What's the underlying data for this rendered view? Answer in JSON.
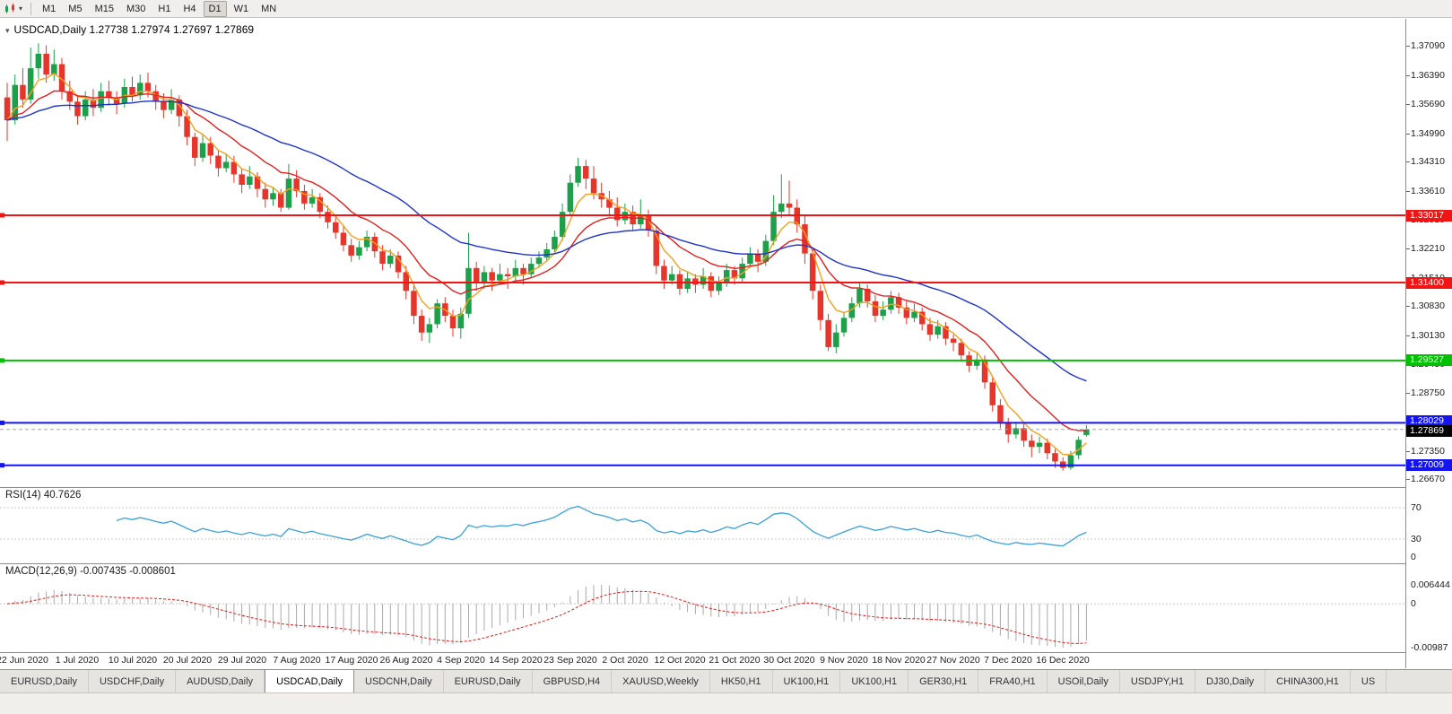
{
  "toolbar": {
    "timeframes": [
      "M1",
      "M5",
      "M15",
      "M30",
      "H1",
      "H4",
      "D1",
      "W1",
      "MN"
    ],
    "active_timeframe": "D1"
  },
  "chart": {
    "title_line": "USDCAD,Daily 1.27738 1.27974 1.27697 1.27869"
  },
  "indicators": {
    "rsi_label": "RSI(14) 40.7626",
    "macd_label": "MACD(12,26,9) -0.007435 -0.008601"
  },
  "tabs": {
    "items": [
      "EURUSD,Daily",
      "USDCHF,Daily",
      "AUDUSD,Daily",
      "USDCAD,Daily",
      "USDCNH,Daily",
      "EURUSD,Daily",
      "GBPUSD,H4",
      "XAUUSD,Weekly",
      "HK50,H1",
      "UK100,H1",
      "UK100,H1",
      "GER30,H1",
      "FRA40,H1",
      "USOil,Daily",
      "USDJPY,H1",
      "DJ30,Daily",
      "CHINA300,H1",
      "US"
    ],
    "active_index": 3
  },
  "colors": {
    "bull": "#1CA049",
    "bear": "#E6352B",
    "ma_fast": "#F5A01E",
    "ma_mid": "#E02020",
    "ma_slow": "#2033C8",
    "line_red": "#F01414",
    "line_green": "#00C100",
    "line_blue": "#1414F0",
    "rsi": "#3AA0DC",
    "macd_hist": "#AAAAAA",
    "macd_signal": "#F01414",
    "current_price": "#000000"
  },
  "chart_data": {
    "type": "candlestick",
    "symbol": "USDCAD",
    "timeframe": "Daily",
    "ohlc_display": {
      "open": "1.27738",
      "high": "1.27974",
      "low": "1.27697",
      "close": "1.27869"
    },
    "y_ticks": [
      "1.37090",
      "1.36390",
      "1.35690",
      "1.34990",
      "1.34310",
      "1.33610",
      "1.32910",
      "1.32210",
      "1.31510",
      "1.30830",
      "1.30130",
      "1.29430",
      "1.28750",
      "1.28050",
      "1.27350",
      "1.26670"
    ],
    "x_labels": [
      "22 Jun 2020",
      "1 Jul 2020",
      "10 Jul 2020",
      "20 Jul 2020",
      "29 Jul 2020",
      "7 Aug 2020",
      "17 Aug 2020",
      "26 Aug 2020",
      "4 Sep 2020",
      "14 Sep 2020",
      "23 Sep 2020",
      "2 Oct 2020",
      "12 Oct 2020",
      "21 Oct 2020",
      "30 Oct 2020",
      "9 Nov 2020",
      "18 Nov 2020",
      "27 Nov 2020",
      "7 Dec 2020",
      "16 Dec 2020"
    ],
    "horizontal_lines": [
      {
        "value": 1.33017,
        "label": "1.33017",
        "color_key": "line_red"
      },
      {
        "value": 1.314,
        "label": "1.31400",
        "color_key": "line_red"
      },
      {
        "value": 1.29527,
        "label": "1.29527",
        "color_key": "line_green"
      },
      {
        "value": 1.28029,
        "label": "1.28029",
        "color_key": "line_blue"
      },
      {
        "value": 1.27009,
        "label": "1.27009",
        "color_key": "line_blue"
      }
    ],
    "current_price": {
      "value": 1.27869,
      "label": "1.27869"
    },
    "moving_averages": [
      {
        "period": 5,
        "color_key": "ma_fast"
      },
      {
        "period": 13,
        "color_key": "ma_mid"
      },
      {
        "period": 34,
        "color_key": "ma_slow"
      }
    ],
    "rsi": {
      "period": 14,
      "current": 40.7626,
      "levels": [
        70,
        30
      ],
      "scale_labels": [
        "70",
        "30",
        "0"
      ]
    },
    "macd": {
      "fast": 12,
      "slow": 26,
      "signal": 9,
      "main": -0.007435,
      "signal_value": -0.008601,
      "scale_labels": [
        "0.006444",
        "0",
        "-0.00987"
      ]
    },
    "candles": [
      [
        1.3585,
        1.362,
        1.348,
        1.353
      ],
      [
        1.353,
        1.364,
        1.352,
        1.3615
      ],
      [
        1.3615,
        1.3655,
        1.356,
        1.358
      ],
      [
        1.358,
        1.3705,
        1.357,
        1.3655
      ],
      [
        1.3655,
        1.3715,
        1.363,
        1.369
      ],
      [
        1.369,
        1.371,
        1.362,
        1.364
      ],
      [
        1.364,
        1.37,
        1.3625,
        1.3665
      ],
      [
        1.3665,
        1.368,
        1.358,
        1.36
      ],
      [
        1.36,
        1.3625,
        1.3555,
        1.3575
      ],
      [
        1.3575,
        1.359,
        1.352,
        1.354
      ],
      [
        1.354,
        1.36,
        1.353,
        1.358
      ],
      [
        1.358,
        1.3605,
        1.354,
        1.356
      ],
      [
        1.356,
        1.362,
        1.355,
        1.36
      ],
      [
        1.36,
        1.3625,
        1.3565,
        1.3585
      ],
      [
        1.3585,
        1.36,
        1.3545,
        1.357
      ],
      [
        1.357,
        1.363,
        1.356,
        1.361
      ],
      [
        1.361,
        1.3635,
        1.3575,
        1.359
      ],
      [
        1.359,
        1.364,
        1.358,
        1.362
      ],
      [
        1.362,
        1.3645,
        1.3585,
        1.36
      ],
      [
        1.36,
        1.3615,
        1.3555,
        1.3575
      ],
      [
        1.3575,
        1.3595,
        1.3535,
        1.3555
      ],
      [
        1.3555,
        1.3605,
        1.3545,
        1.358
      ],
      [
        1.358,
        1.359,
        1.3515,
        1.354
      ],
      [
        1.354,
        1.3555,
        1.347,
        1.349
      ],
      [
        1.349,
        1.35,
        1.342,
        1.344
      ],
      [
        1.344,
        1.3495,
        1.343,
        1.3475
      ],
      [
        1.3475,
        1.349,
        1.3425,
        1.3445
      ],
      [
        1.3445,
        1.346,
        1.3395,
        1.3415
      ],
      [
        1.3415,
        1.345,
        1.3405,
        1.343
      ],
      [
        1.343,
        1.3445,
        1.338,
        1.34
      ],
      [
        1.34,
        1.3415,
        1.3355,
        1.3375
      ],
      [
        1.3375,
        1.342,
        1.3365,
        1.3395
      ],
      [
        1.3395,
        1.3405,
        1.3345,
        1.3365
      ],
      [
        1.3365,
        1.338,
        1.332,
        1.334
      ],
      [
        1.334,
        1.337,
        1.3325,
        1.3355
      ],
      [
        1.3355,
        1.3365,
        1.331,
        1.332
      ],
      [
        1.332,
        1.3425,
        1.3315,
        1.339
      ],
      [
        1.339,
        1.341,
        1.3345,
        1.336
      ],
      [
        1.336,
        1.3375,
        1.3315,
        1.333
      ],
      [
        1.333,
        1.3365,
        1.332,
        1.3345
      ],
      [
        1.3345,
        1.3355,
        1.3295,
        1.331
      ],
      [
        1.331,
        1.3325,
        1.327,
        1.3285
      ],
      [
        1.3285,
        1.33,
        1.3245,
        1.326
      ],
      [
        1.326,
        1.3275,
        1.3215,
        1.323
      ],
      [
        1.323,
        1.3245,
        1.319,
        1.3205
      ],
      [
        1.3205,
        1.324,
        1.3195,
        1.3225
      ],
      [
        1.3225,
        1.3265,
        1.3215,
        1.325
      ],
      [
        1.325,
        1.326,
        1.32,
        1.3215
      ],
      [
        1.3215,
        1.323,
        1.317,
        1.3185
      ],
      [
        1.3185,
        1.322,
        1.3175,
        1.3205
      ],
      [
        1.3205,
        1.3215,
        1.315,
        1.3165
      ],
      [
        1.3165,
        1.318,
        1.31,
        1.312
      ],
      [
        1.312,
        1.3135,
        1.304,
        1.306
      ],
      [
        1.306,
        1.3075,
        1.3,
        1.302
      ],
      [
        1.302,
        1.3055,
        1.2995,
        1.304
      ],
      [
        1.304,
        1.31,
        1.303,
        1.309
      ],
      [
        1.309,
        1.3105,
        1.3045,
        1.306
      ],
      [
        1.306,
        1.3075,
        1.301,
        1.303
      ],
      [
        1.303,
        1.308,
        1.3005,
        1.3065
      ],
      [
        1.3065,
        1.326,
        1.3055,
        1.3175
      ],
      [
        1.3175,
        1.319,
        1.312,
        1.314
      ],
      [
        1.314,
        1.318,
        1.3125,
        1.3165
      ],
      [
        1.3165,
        1.3175,
        1.312,
        1.3145
      ],
      [
        1.3145,
        1.3185,
        1.3135,
        1.316
      ],
      [
        1.316,
        1.3175,
        1.3125,
        1.3155
      ],
      [
        1.3155,
        1.3195,
        1.3145,
        1.3175
      ],
      [
        1.3175,
        1.3185,
        1.3135,
        1.316
      ],
      [
        1.316,
        1.32,
        1.315,
        1.3185
      ],
      [
        1.3185,
        1.3215,
        1.3175,
        1.32
      ],
      [
        1.32,
        1.3235,
        1.319,
        1.322
      ],
      [
        1.322,
        1.3265,
        1.321,
        1.325
      ],
      [
        1.325,
        1.333,
        1.324,
        1.331
      ],
      [
        1.331,
        1.34,
        1.33,
        1.338
      ],
      [
        1.338,
        1.344,
        1.337,
        1.342
      ],
      [
        1.342,
        1.3435,
        1.3365,
        1.339
      ],
      [
        1.339,
        1.342,
        1.334,
        1.3355
      ],
      [
        1.3355,
        1.338,
        1.332,
        1.334
      ],
      [
        1.334,
        1.336,
        1.33,
        1.332
      ],
      [
        1.332,
        1.3345,
        1.3275,
        1.329
      ],
      [
        1.329,
        1.333,
        1.328,
        1.331
      ],
      [
        1.331,
        1.3325,
        1.3265,
        1.328
      ],
      [
        1.328,
        1.334,
        1.327,
        1.33
      ],
      [
        1.33,
        1.3315,
        1.325,
        1.3265
      ],
      [
        1.3265,
        1.3275,
        1.316,
        1.318
      ],
      [
        1.318,
        1.3195,
        1.3125,
        1.3145
      ],
      [
        1.3145,
        1.318,
        1.3135,
        1.316
      ],
      [
        1.316,
        1.317,
        1.311,
        1.3125
      ],
      [
        1.3125,
        1.3165,
        1.3115,
        1.315
      ],
      [
        1.315,
        1.316,
        1.3115,
        1.3135
      ],
      [
        1.3135,
        1.3175,
        1.3125,
        1.3155
      ],
      [
        1.3155,
        1.3165,
        1.3105,
        1.312
      ],
      [
        1.312,
        1.3155,
        1.311,
        1.314
      ],
      [
        1.314,
        1.3185,
        1.313,
        1.317
      ],
      [
        1.317,
        1.318,
        1.3135,
        1.315
      ],
      [
        1.315,
        1.32,
        1.314,
        1.3185
      ],
      [
        1.3185,
        1.3225,
        1.3175,
        1.321
      ],
      [
        1.321,
        1.322,
        1.3165,
        1.319
      ],
      [
        1.319,
        1.3255,
        1.318,
        1.324
      ],
      [
        1.324,
        1.335,
        1.323,
        1.331
      ],
      [
        1.331,
        1.34,
        1.3295,
        1.333
      ],
      [
        1.333,
        1.3385,
        1.33,
        1.332
      ],
      [
        1.332,
        1.334,
        1.326,
        1.328
      ],
      [
        1.328,
        1.33,
        1.3185,
        1.321
      ],
      [
        1.321,
        1.3225,
        1.31,
        1.312
      ],
      [
        1.312,
        1.3135,
        1.3025,
        1.305
      ],
      [
        1.305,
        1.3065,
        1.2975,
        1.2985
      ],
      [
        1.2985,
        1.304,
        1.297,
        1.302
      ],
      [
        1.302,
        1.307,
        1.301,
        1.3055
      ],
      [
        1.3055,
        1.3105,
        1.3045,
        1.309
      ],
      [
        1.309,
        1.314,
        1.308,
        1.3125
      ],
      [
        1.3125,
        1.3135,
        1.308,
        1.3095
      ],
      [
        1.3095,
        1.311,
        1.3045,
        1.306
      ],
      [
        1.306,
        1.3095,
        1.305,
        1.3075
      ],
      [
        1.3075,
        1.312,
        1.3065,
        1.3105
      ],
      [
        1.3105,
        1.3115,
        1.3065,
        1.308
      ],
      [
        1.308,
        1.3095,
        1.304,
        1.3055
      ],
      [
        1.3055,
        1.309,
        1.3045,
        1.307
      ],
      [
        1.307,
        1.308,
        1.3025,
        1.304
      ],
      [
        1.304,
        1.3055,
        1.3,
        1.3015
      ],
      [
        1.3015,
        1.305,
        1.3005,
        1.3035
      ],
      [
        1.3035,
        1.3045,
        1.299,
        1.3005
      ],
      [
        1.3005,
        1.3015,
        1.2975,
        1.2995
      ],
      [
        1.2995,
        1.3005,
        1.295,
        1.2965
      ],
      [
        1.2965,
        1.2975,
        1.2925,
        1.294
      ],
      [
        1.294,
        1.297,
        1.293,
        1.2955
      ],
      [
        1.2955,
        1.2965,
        1.2885,
        1.29
      ],
      [
        1.29,
        1.2915,
        1.283,
        1.2845
      ],
      [
        1.2845,
        1.286,
        1.279,
        1.2805
      ],
      [
        1.2805,
        1.2815,
        1.2755,
        1.2775
      ],
      [
        1.2775,
        1.2805,
        1.2765,
        1.279
      ],
      [
        1.279,
        1.28,
        1.2745,
        1.276
      ],
      [
        1.276,
        1.2775,
        1.272,
        1.2745
      ],
      [
        1.2745,
        1.277,
        1.273,
        1.2755
      ],
      [
        1.2755,
        1.2765,
        1.2715,
        1.273
      ],
      [
        1.273,
        1.274,
        1.2695,
        1.271
      ],
      [
        1.271,
        1.272,
        1.2688,
        1.2695
      ],
      [
        1.2695,
        1.2735,
        1.269,
        1.2725
      ],
      [
        1.2725,
        1.277,
        1.2715,
        1.2762
      ],
      [
        1.27738,
        1.27974,
        1.27697,
        1.27869
      ]
    ]
  }
}
